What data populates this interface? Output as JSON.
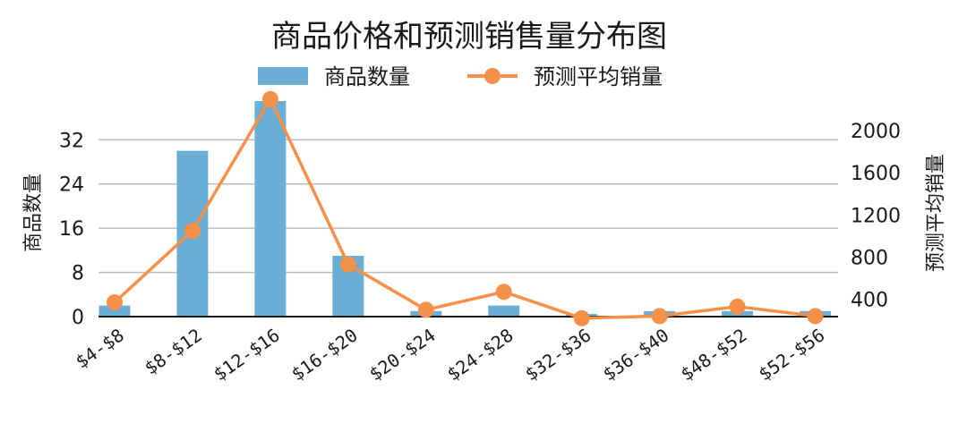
{
  "chart_data": {
    "type": "bar",
    "title": "商品价格和预测销售量分布图",
    "categories": [
      "$4-$8",
      "$8-$12",
      "$12-$16",
      "$16-$20",
      "$20-$24",
      "$24-$28",
      "$32-$36",
      "$36-$40",
      "$48-$52",
      "$52-$56"
    ],
    "series": [
      {
        "name": "商品数量",
        "type": "bar",
        "axis": "left",
        "color": "#6aaed6",
        "values": [
          2,
          30,
          39,
          11,
          1,
          2,
          0.5,
          1,
          1,
          1
        ]
      },
      {
        "name": "预测平均销量",
        "type": "line",
        "axis": "right",
        "color": "#f5904a",
        "values": [
          370,
          1050,
          2300,
          730,
          300,
          470,
          220,
          240,
          330,
          240
        ]
      }
    ],
    "ylabel": "商品数量",
    "y2label": "预测平均销量",
    "ylim": [
      0,
      39
    ],
    "y2lim": [
      235,
      2281
    ],
    "yticks": [
      0,
      8,
      16,
      24,
      32
    ],
    "y2ticks": [
      400,
      800,
      1200,
      1600,
      2000
    ],
    "grid": true,
    "legend": "top-center"
  }
}
